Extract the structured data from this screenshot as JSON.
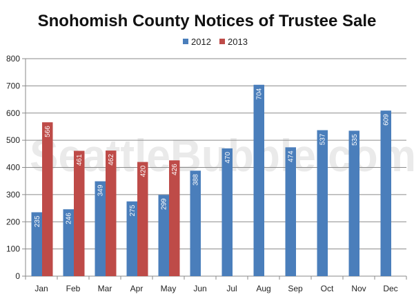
{
  "chart_data": {
    "type": "bar",
    "title": "Snohomish County Notices of Trustee Sale",
    "watermark": "SeattleBubble.com",
    "categories": [
      "Jan",
      "Feb",
      "Mar",
      "Apr",
      "May",
      "Jun",
      "Jul",
      "Aug",
      "Sep",
      "Oct",
      "Nov",
      "Dec"
    ],
    "series": [
      {
        "name": "2012",
        "color": "#4a7ebb",
        "values": [
          235,
          246,
          349,
          275,
          299,
          388,
          470,
          704,
          474,
          537,
          535,
          609
        ]
      },
      {
        "name": "2013",
        "color": "#be4b48",
        "values": [
          566,
          461,
          462,
          420,
          426,
          null,
          null,
          null,
          null,
          null,
          null,
          null
        ]
      }
    ],
    "ylim": [
      0,
      800
    ],
    "yticks": [
      0,
      100,
      200,
      300,
      400,
      500,
      600,
      700,
      800
    ],
    "grid": true,
    "legend_position": "top"
  }
}
